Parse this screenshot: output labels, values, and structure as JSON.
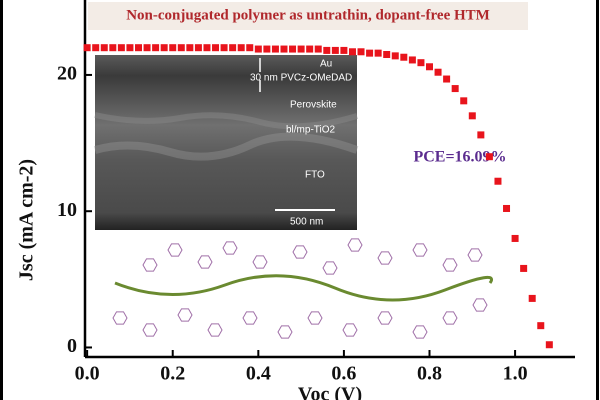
{
  "chart_data": {
    "type": "scatter",
    "title": "Non-conjugated polymer as untrathin, dopant-free HTM",
    "annotation": "PCE=16.09%",
    "xlabel": "Voc (V)",
    "ylabel": "Jsc (mA cm-2)",
    "inset_labels": [
      "Au",
      "30 nm PVCz-OMeDAD",
      "Perovskite",
      "bl/mp-TiO2",
      "FTO",
      "500 nm"
    ],
    "color": "#e8141c",
    "x": [
      0,
      0.02,
      0.04,
      0.06,
      0.08,
      0.1,
      0.12,
      0.14,
      0.16,
      0.18,
      0.2,
      0.22,
      0.24,
      0.26,
      0.28,
      0.3,
      0.32,
      0.34,
      0.36,
      0.38,
      0.4,
      0.42,
      0.44,
      0.46,
      0.48,
      0.5,
      0.52,
      0.54,
      0.56,
      0.58,
      0.6,
      0.62,
      0.64,
      0.66,
      0.68,
      0.7,
      0.72,
      0.74,
      0.76,
      0.78,
      0.8,
      0.82,
      0.84,
      0.86,
      0.88,
      0.9,
      0.92,
      0.94,
      0.96,
      0.98,
      1.0,
      1.02,
      1.04,
      1.06,
      1.08
    ],
    "values": [
      22.0,
      22.0,
      22.0,
      22.0,
      22.0,
      22.0,
      22.0,
      22.0,
      22.0,
      22.0,
      22.0,
      22.0,
      22.0,
      22.0,
      22.0,
      22.0,
      22.0,
      22.0,
      22.0,
      22.0,
      21.9,
      21.9,
      21.9,
      21.9,
      21.9,
      21.9,
      21.9,
      21.9,
      21.8,
      21.8,
      21.8,
      21.7,
      21.7,
      21.6,
      21.6,
      21.5,
      21.4,
      21.3,
      21.1,
      20.9,
      20.6,
      20.2,
      19.7,
      19.0,
      18.1,
      17.0,
      15.6,
      14.0,
      12.2,
      10.2,
      8.0,
      5.8,
      3.6,
      1.6,
      0.2
    ],
    "xlim": [
      -0.005,
      1.14
    ],
    "ylim": [
      -0.7,
      25.5
    ],
    "xticks": [
      {
        "value": 0,
        "label": "0.0"
      },
      {
        "value": 0.2,
        "label": "0.2"
      },
      {
        "value": 0.4,
        "label": "0.4"
      },
      {
        "value": 0.6,
        "label": "0.6"
      },
      {
        "value": 0.8,
        "label": "0.8"
      },
      {
        "value": 1.0,
        "label": "1.0"
      }
    ],
    "yticks": [
      0,
      10,
      20
    ]
  }
}
